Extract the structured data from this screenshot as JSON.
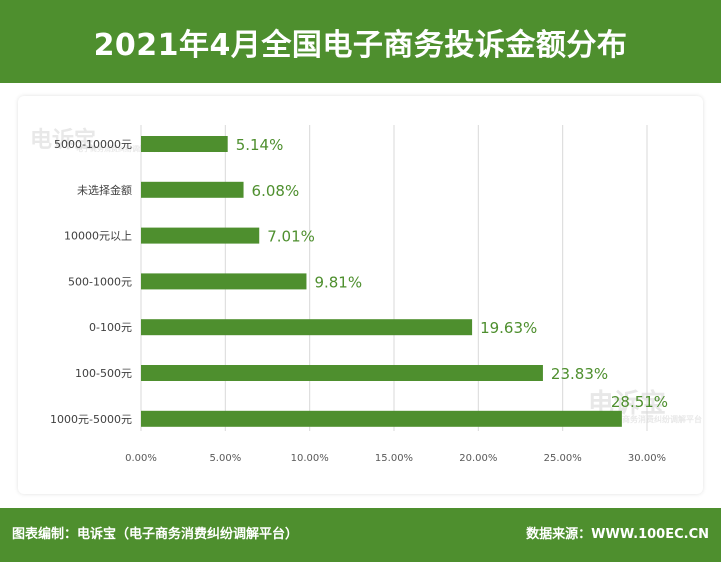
{
  "header": {
    "title": "2021年4月全国电子商务投诉金额分布"
  },
  "watermark": {
    "brand": "电诉宝",
    "sub": "电子商务消费纠纷调解平台"
  },
  "footer": {
    "left": "图表编制：电诉宝（电子商务消费纠纷调解平台）",
    "right": "数据来源：WWW.100EC.CN"
  },
  "colors": {
    "accent": "#4e8f2e",
    "bar": "#4e8f2e",
    "label": "#4e8f2e"
  },
  "chart_data": {
    "type": "bar",
    "orientation": "horizontal",
    "categories": [
      "5000-10000元",
      "未选择金额",
      "10000元以上",
      "500-1000元",
      "0-100元",
      "100-500元",
      "1000元-5000元"
    ],
    "values": [
      5.14,
      6.08,
      7.01,
      9.81,
      19.63,
      23.83,
      28.51
    ],
    "data_labels": [
      "5.14%",
      "6.08%",
      "7.01%",
      "9.81%",
      "19.63%",
      "23.83%",
      "28.51%"
    ],
    "xlim": [
      0,
      30
    ],
    "xticks": [
      0,
      5,
      10,
      15,
      20,
      25,
      30
    ],
    "xtick_labels": [
      "0.00%",
      "5.00%",
      "10.00%",
      "15.00%",
      "20.00%",
      "25.00%",
      "30.00%"
    ],
    "grid": true,
    "title": "2021年4月全国电子商务投诉金额分布"
  }
}
